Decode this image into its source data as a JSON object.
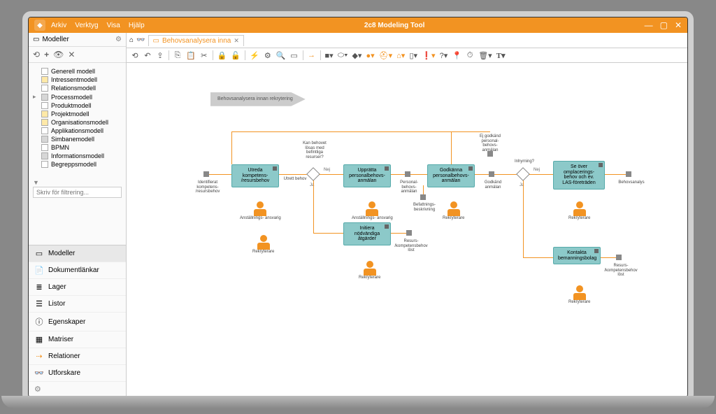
{
  "app": {
    "title": "2c8 Modeling Tool"
  },
  "menus": {
    "arkiv": "Arkiv",
    "verktyg": "Verktyg",
    "visa": "Visa",
    "hjalp": "Hjälp"
  },
  "winctrl": {
    "min": "—",
    "max": "▢",
    "close": "✕"
  },
  "sidebar": {
    "header": "Modeller",
    "toolbar": {
      "refresh": "⟲",
      "plus": "+",
      "eye": "👁",
      "x": "✕"
    },
    "tree": [
      {
        "label": "Generell modell",
        "color": "#fff"
      },
      {
        "label": "Intressentmodell",
        "color": "#ffe9a8"
      },
      {
        "label": "Relationsmodell",
        "color": "#fff"
      },
      {
        "label": "Processmodell",
        "color": "#d7d7d7",
        "expandable": true
      },
      {
        "label": "Produktmodell",
        "color": "#fff"
      },
      {
        "label": "Projektmodell",
        "color": "#ffe9a8"
      },
      {
        "label": "Organisationsmodell",
        "color": "#ffe9a8"
      },
      {
        "label": "Applikationsmodell",
        "color": "#fff"
      },
      {
        "label": "Simbanemodell",
        "color": "#d7d7d7"
      },
      {
        "label": "BPMN",
        "color": "#fff"
      },
      {
        "label": "Informationsmodell",
        "color": "#d7d7d7"
      },
      {
        "label": "Begreppsmodell",
        "color": "#fff"
      }
    ],
    "filter_placeholder": "Skriv för filtrering...",
    "panels": [
      {
        "icon": "▭",
        "label": "Modeller",
        "active": true
      },
      {
        "icon": "📄",
        "label": "Dokumentlänkar"
      },
      {
        "icon": "≣",
        "label": "Lager"
      },
      {
        "icon": "☰",
        "label": "Listor"
      },
      {
        "icon": "ⓘ",
        "label": "Egenskaper"
      },
      {
        "icon": "▦",
        "label": "Matriser"
      },
      {
        "icon": "⇢",
        "label": "Relationer",
        "color": "#f29322"
      },
      {
        "icon": "👓",
        "label": "Utforskare"
      }
    ]
  },
  "tab": {
    "label": "Behovsanalysera inna",
    "icon": "▭"
  },
  "tabicons": {
    "home": "⌂",
    "bino": "👓"
  },
  "start": "Behovsanalysera\ninnan rekrytering",
  "boxes": {
    "b1": "Utreda\nkompetens-\n/resursbehov",
    "b2": "Upprätta\npersonalbehovs-\nanmälan",
    "b3": "Godkänna\npersonalbehovs-\nanmälan",
    "b4": "Se över\nomplacerings-\nbehov och ev.\nLAS-företräden",
    "b5": "Initiera\nnödvändiga\nåtgärder",
    "b6": "Kontakta\nbemanningsbolag"
  },
  "labels": {
    "l1": "Identifierat\nkompetens-\n/resursbehov",
    "l2": "Utrett behov",
    "l3": "Kan behovet\nlösas med\nbefintliga\nresurser?",
    "l4": "Personal-\nbehovs-\nanmälan",
    "l5": "Godkänd\nanmälan",
    "l6": "Ej godkänd\npersonal-\nbehovs-\nanmälan",
    "l7": "Inhyrning?",
    "l8": "Behovsanalys",
    "l9": "Resurs-\n/kompetensbehov\nlöst",
    "l10": "Resurs-\n/kompetensbehov\nlöst",
    "l11": "Befattnings-\nbeskrivning",
    "nej": "Nej",
    "ja": "Ja"
  },
  "actors": {
    "a1": "Anställnings-\nansvarig",
    "a2": "Rekryterare",
    "a3": "Anställnings-\nansvarig",
    "a4": "Rekryterare",
    "a5": "Rekryterare",
    "a6": "Rekryterare",
    "a7": "Rekryterare"
  },
  "colors": {
    "accent": "#f29322",
    "process": "#8cc9c9",
    "actor": "#f29322"
  }
}
